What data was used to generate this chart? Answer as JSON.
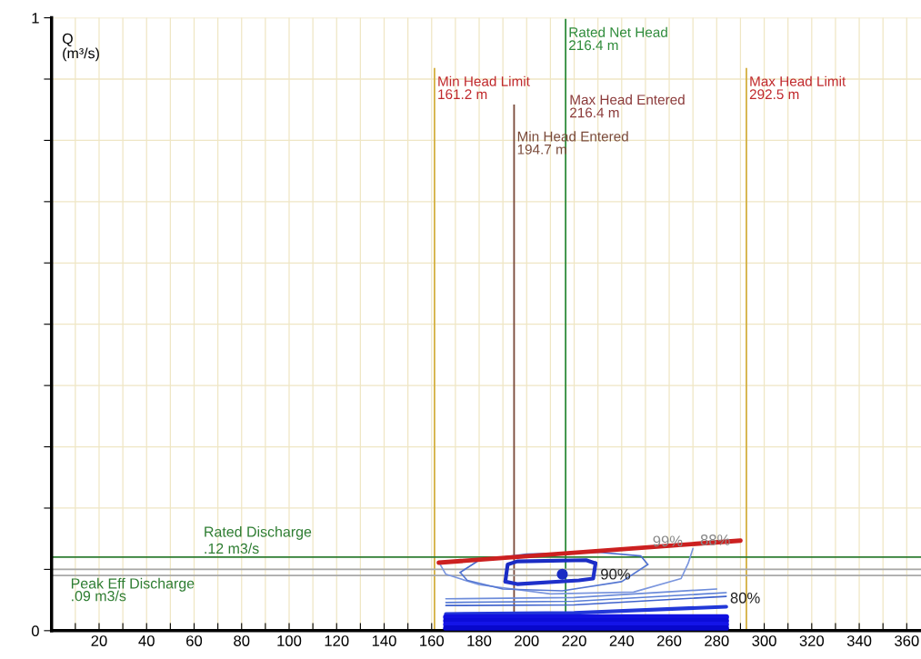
{
  "chart_data": {
    "type": "line",
    "ylabel": "Q\n(m³/s)",
    "xlim": [
      0,
      366
    ],
    "ylim": [
      0,
      1
    ],
    "xticks": [
      {
        "value": 10,
        "label": null
      },
      20,
      {
        "value": 30,
        "label": null
      },
      40,
      {
        "value": 50,
        "label": null
      },
      60,
      {
        "value": 70,
        "label": null
      },
      80,
      {
        "value": 90,
        "label": null
      },
      100,
      {
        "value": 110,
        "label": null
      },
      120,
      {
        "value": 130,
        "label": null
      },
      140,
      {
        "value": 150,
        "label": null
      },
      160,
      {
        "value": 170,
        "label": null
      },
      180,
      {
        "value": 190,
        "label": null
      },
      200,
      {
        "value": 210,
        "label": null
      },
      220,
      {
        "value": 230,
        "label": null
      },
      240,
      {
        "value": 250,
        "label": null
      },
      260,
      {
        "value": 270,
        "label": null
      },
      280,
      {
        "value": 290,
        "label": null
      },
      300,
      {
        "value": 310,
        "label": null
      },
      320,
      {
        "value": 330,
        "label": null
      },
      340,
      {
        "value": 350,
        "label": null
      },
      360
    ],
    "yticks": [
      0,
      {
        "value": 0.1,
        "label": null
      },
      {
        "value": 0.2,
        "label": null
      },
      {
        "value": 0.3,
        "label": null
      },
      {
        "value": 0.4,
        "label": null
      },
      {
        "value": 0.5,
        "label": null
      },
      {
        "value": 0.6,
        "label": null
      },
      {
        "value": 0.7,
        "label": null
      },
      {
        "value": 0.8,
        "label": null
      },
      {
        "value": 0.9,
        "label": null
      },
      1
    ],
    "grid": true,
    "series": [
      {
        "color": "#7b96de",
        "x": [
          163,
          166,
          180,
          210,
          245,
          265,
          268,
          270
        ],
        "values": [
          0.112,
          0.092,
          0.075,
          0.06,
          0.063,
          0.085,
          0.11,
          0.134
        ]
      },
      {
        "color": "#4a6ccf",
        "x": [
          172,
          180,
          200,
          230,
          248,
          251
        ],
        "values": [
          0.095,
          0.115,
          0.125,
          0.128,
          0.122,
          0.108
        ]
      },
      {
        "color": "#5577d2",
        "x": [
          172,
          175,
          190,
          215,
          240,
          251
        ],
        "values": [
          0.095,
          0.082,
          0.068,
          0.065,
          0.08,
          0.108
        ]
      },
      {
        "color": "#1a2cc4",
        "x": [
          191,
          192,
          196,
          225,
          229
        ],
        "values": [
          0.08,
          0.108,
          0.113,
          0.115,
          0.11
        ]
      },
      {
        "color": "#1e30ca",
        "x": [
          191,
          196,
          222,
          228,
          229
        ],
        "values": [
          0.08,
          0.076,
          0.082,
          0.085,
          0.11
        ]
      },
      {
        "color": "#6d8cda",
        "x": [
          166,
          220,
          280
        ],
        "values": [
          0.052,
          0.054,
          0.068
        ]
      },
      {
        "color": "#5a7ed6",
        "x": [
          166,
          220,
          284
        ],
        "values": [
          0.046,
          0.048,
          0.062
        ]
      },
      {
        "color": "#3f62cc",
        "x": [
          166,
          220,
          284
        ],
        "values": [
          0.041,
          0.042,
          0.056
        ]
      },
      {
        "color": "#2238d8",
        "x": [
          166,
          220,
          284
        ],
        "values": [
          0.027,
          0.029,
          0.039
        ]
      },
      {
        "color": "#1010e0",
        "x": [
          166,
          284
        ],
        "values": [
          0.022,
          0.022
        ]
      },
      {
        "color": "#0c0cd8",
        "x": [
          166,
          284
        ],
        "values": [
          0.016,
          0.016
        ]
      },
      {
        "color": "#1414e8",
        "x": [
          166,
          284
        ],
        "values": [
          0.01,
          0.01
        ]
      },
      {
        "color": "#0808cc",
        "x": [
          166,
          284
        ],
        "values": [
          0.004,
          0.004
        ]
      },
      {
        "color": "#cc2020",
        "x": [
          163,
          290
        ],
        "values": [
          0.111,
          0.147
        ]
      },
      {
        "type": "scatter",
        "color": "#1a2cc4",
        "marker": "circle",
        "x": [
          215
        ],
        "values": [
          0.092
        ]
      }
    ],
    "ref_lines": [
      {
        "axis": "x",
        "value": 161.2,
        "label": "Min Head Limit\n161.2 m",
        "color": "#d4b040"
      },
      {
        "axis": "x",
        "value": 194.7,
        "label": "Min Head Entered\n194.7 m",
        "color": "#7a4a3a"
      },
      {
        "axis": "x",
        "value": 216.4,
        "label": "Rated Net Head\n216.4 m",
        "color": "#2e8b3a"
      },
      {
        "axis": "x",
        "value": 292.5,
        "label": "Max Head Limit\n292.5 m",
        "color": "#d4b040"
      },
      {
        "axis": "y",
        "value": 0.12,
        "label": "Rated Discharge\n.12 m3/s",
        "color": "#2e7d32"
      },
      {
        "axis": "y",
        "value": 0.1,
        "label": null,
        "color": "#a8a8a8"
      },
      {
        "axis": "y",
        "value": 0.09,
        "label": "Peak Eff Discharge\n.09 m3/s",
        "color": "#a8a8a8"
      }
    ],
    "annotations": [
      {
        "text": "99%",
        "x": 253,
        "y": 0.144
      },
      {
        "text": "88%",
        "x": 273,
        "y": 0.146
      },
      {
        "text": "90%",
        "x": 231,
        "y": 0.09
      },
      {
        "text": "80%",
        "x": 284,
        "y": 0.039
      },
      {
        "text": "Max Head Entered\n216.4 m",
        "x": 216.4,
        "y": 0.875
      }
    ]
  }
}
